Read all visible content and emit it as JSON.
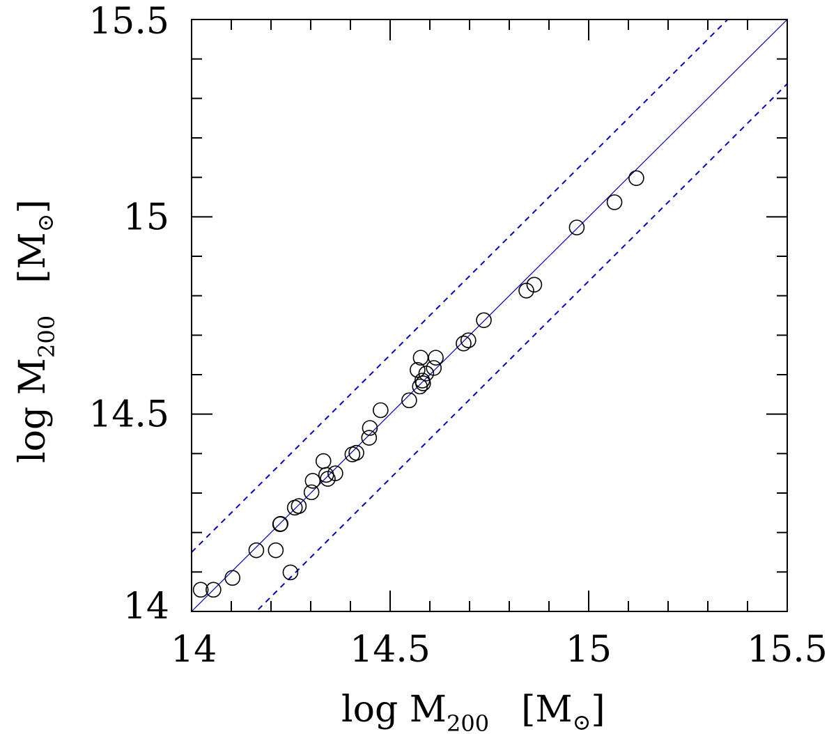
{
  "chart_data": {
    "type": "scatter",
    "title": "",
    "xlabel": {
      "base": "log M",
      "sub": "200",
      "unit_open": "[M",
      "unit_sub": "⊙",
      "unit_close": "]"
    },
    "ylabel": {
      "base": "log M",
      "sub": "200",
      "unit_open": "[M",
      "unit_sub": "⊙",
      "unit_close": "]"
    },
    "xlim": [
      14,
      15.5
    ],
    "ylim": [
      14,
      15.5
    ],
    "xticks": [
      "14",
      "14.5",
      "15",
      "15.5"
    ],
    "yticks": [
      "14",
      "14.5",
      "15",
      "15.5"
    ],
    "minor_tick_step": 0.1,
    "lines": [
      {
        "name": "one-to-one",
        "style": "solid",
        "color": "#0000cc",
        "x": [
          14,
          15.5
        ],
        "y": [
          14,
          15.5
        ]
      },
      {
        "name": "upper-bound",
        "style": "dashed",
        "color": "#0000cc",
        "x": [
          14,
          15.5
        ],
        "y": [
          14.15,
          15.65
        ]
      },
      {
        "name": "lower-bound",
        "style": "dashed",
        "color": "#0000cc",
        "x": [
          14,
          15.5
        ],
        "y": [
          13.837,
          15.337
        ]
      }
    ],
    "series": [
      {
        "name": "clusters",
        "marker": "open-circle",
        "color": "#000000",
        "x": [
          14.023,
          14.055,
          14.103,
          14.163,
          14.212,
          14.223,
          14.224,
          14.26,
          14.27,
          14.249,
          14.302,
          14.305,
          14.332,
          14.339,
          14.343,
          14.362,
          14.405,
          14.415,
          14.447,
          14.449,
          14.476,
          14.548,
          14.569,
          14.577,
          14.581,
          14.575,
          14.583,
          14.591,
          14.61,
          14.615,
          14.685,
          14.697,
          14.736,
          14.843,
          14.863,
          14.97,
          15.065,
          15.12
        ],
        "y": [
          14.055,
          14.055,
          14.085,
          14.155,
          14.155,
          14.221,
          14.222,
          14.263,
          14.267,
          14.099,
          14.302,
          14.331,
          14.381,
          14.346,
          14.336,
          14.35,
          14.398,
          14.402,
          14.44,
          14.465,
          14.51,
          14.535,
          14.612,
          14.643,
          14.585,
          14.57,
          14.578,
          14.603,
          14.617,
          14.643,
          14.679,
          14.687,
          14.738,
          14.813,
          14.828,
          14.973,
          15.037,
          15.098
        ]
      }
    ]
  }
}
